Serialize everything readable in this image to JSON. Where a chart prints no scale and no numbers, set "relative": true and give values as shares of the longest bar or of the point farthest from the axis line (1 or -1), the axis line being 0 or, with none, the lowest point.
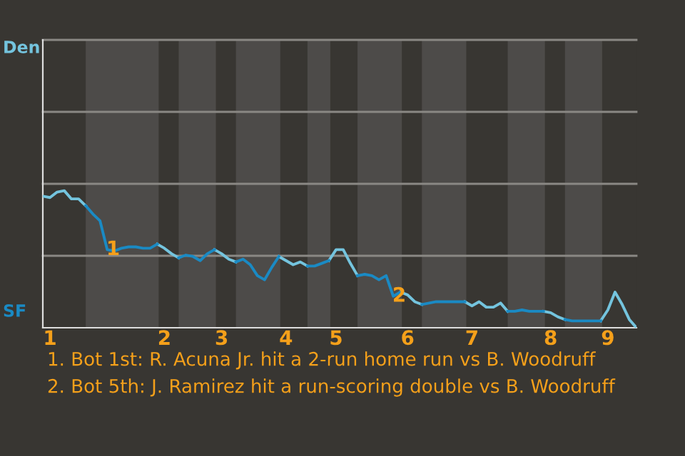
{
  "chart_data": {
    "type": "line",
    "relative": true,
    "categories": [
      null,
      "1",
      null,
      null,
      null,
      null,
      null,
      null,
      null,
      null,
      null,
      null,
      null,
      null,
      null,
      null,
      null,
      "2",
      null,
      null,
      null,
      null,
      null,
      null,
      null,
      "3",
      null,
      null,
      null,
      null,
      null,
      null,
      null,
      null,
      "4",
      null,
      null,
      null,
      null,
      null,
      null,
      "5",
      null,
      null,
      null,
      null,
      null,
      null,
      null,
      null,
      null,
      "6",
      null,
      null,
      null,
      null,
      null,
      null,
      null,
      null,
      "7",
      null,
      null,
      null,
      null,
      null,
      null,
      null,
      null,
      null,
      null,
      "8",
      null,
      null,
      null,
      null,
      null,
      null,
      null,
      "9",
      null,
      null,
      null,
      null
    ],
    "series": [
      {
        "color": "#74c4de",
        "values": [
          0.96,
          0.95,
          0.99,
          1,
          0.94,
          0.94,
          0.89,
          null,
          null,
          null,
          null,
          null,
          null,
          null,
          null,
          null,
          0.61,
          0.58,
          0.54,
          0.51,
          null,
          null,
          null,
          null,
          0.57,
          0.54,
          0.5,
          0.48,
          null,
          null,
          null,
          null,
          null,
          0.52,
          0.49,
          0.46,
          0.48,
          0.45,
          null,
          null,
          0.49,
          0.57,
          0.57,
          0.47,
          0.38,
          null,
          null,
          null,
          null,
          null,
          0.26,
          0.24,
          0.19,
          0.17,
          null,
          null,
          null,
          null,
          null,
          0.19,
          0.16,
          0.19,
          0.15,
          0.15,
          0.18,
          0.12,
          null,
          null,
          null,
          null,
          0.12,
          0.11,
          0.08,
          0.06,
          null,
          null,
          null,
          null,
          0.05,
          0.13,
          0.26,
          0.17,
          0.06,
          0
        ]
      },
      {
        "color": "#1a8ac4",
        "values": [
          null,
          null,
          null,
          null,
          null,
          null,
          0.89,
          0.83,
          0.78,
          0.57,
          0.56,
          0.58,
          0.59,
          0.59,
          0.58,
          0.58,
          0.61,
          null,
          null,
          0.51,
          0.53,
          0.52,
          0.49,
          0.54,
          0.57,
          null,
          null,
          0.48,
          0.5,
          0.46,
          0.38,
          0.35,
          0.44,
          0.52,
          null,
          null,
          null,
          0.45,
          0.45,
          0.47,
          0.49,
          null,
          null,
          null,
          0.38,
          0.39,
          0.38,
          0.35,
          0.38,
          0.23,
          0.26,
          null,
          null,
          0.17,
          0.18,
          0.19,
          0.19,
          0.19,
          0.19,
          0.19,
          null,
          null,
          null,
          null,
          null,
          0.12,
          0.12,
          0.13,
          0.12,
          0.12,
          0.12,
          null,
          null,
          0.06,
          0.05,
          0.05,
          0.05,
          0.05,
          0.05,
          null,
          null,
          null,
          null,
          null
        ]
      }
    ],
    "ref_lines": [
      {
        "axis": "y",
        "value": 0.525,
        "color": "#8a8884"
      },
      {
        "axis": "y",
        "value": 1.05,
        "color": "#8a8884"
      },
      {
        "axis": "y",
        "value": 1.575,
        "color": "#8a8884"
      },
      {
        "axis": "y",
        "value": 2.1,
        "color": "#8a8884"
      }
    ],
    "annotations": [
      "Den",
      "SF",
      {
        "text": "1",
        "y": 0.57
      },
      {
        "text": "2",
        "y": 0.23
      },
      "1. Bot 1st: R. Acuna Jr. hit a 2-run home run vs B. Woodruff",
      "2. Bot 5th: J. Ramirez hit a run-scoring double vs B. Woodruff"
    ]
  }
}
